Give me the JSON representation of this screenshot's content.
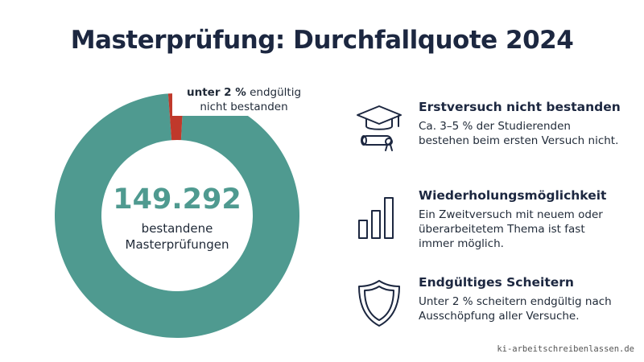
{
  "title": "Masterprüfung: Durchfallquote 2024",
  "chart_data": {
    "type": "pie",
    "variant": "donut",
    "title": "Masterprüfung: Durchfallquote 2024",
    "slices": [
      {
        "label": "bestanden",
        "value": 98,
        "color": "#4f9a90"
      },
      {
        "label": "endgültig nicht bestanden",
        "value": 2,
        "color": "#c0392b"
      }
    ],
    "center_value": "149.292",
    "center_label_line1": "bestandene",
    "center_label_line2": "Masterprüfungen",
    "callout_bold": "unter 2 %",
    "callout_rest_line1": "endgültig",
    "callout_line2": "nicht bestanden"
  },
  "info_items": [
    {
      "icon": "graduation-cap-diploma-icon",
      "title": "Erstversuch nicht bestanden",
      "text": "Ca. 3–5 % der Studierenden bestehen beim ersten Versuch nicht."
    },
    {
      "icon": "bar-chart-icon",
      "title": "Wiederholungsmöglichkeit",
      "text": "Ein Zweitversuch mit neuem oder überarbeitetem Thema ist fast immer möglich."
    },
    {
      "icon": "shield-icon",
      "title": "Endgültiges Scheitern",
      "text": "Unter 2 % scheitern endgültig nach Ausschöpfung aller Versuche."
    }
  ],
  "watermark": "ki-arbeitschreibenlassen.de",
  "colors": {
    "teal": "#4f9a90",
    "red": "#c0392b",
    "navy": "#1c2740"
  }
}
